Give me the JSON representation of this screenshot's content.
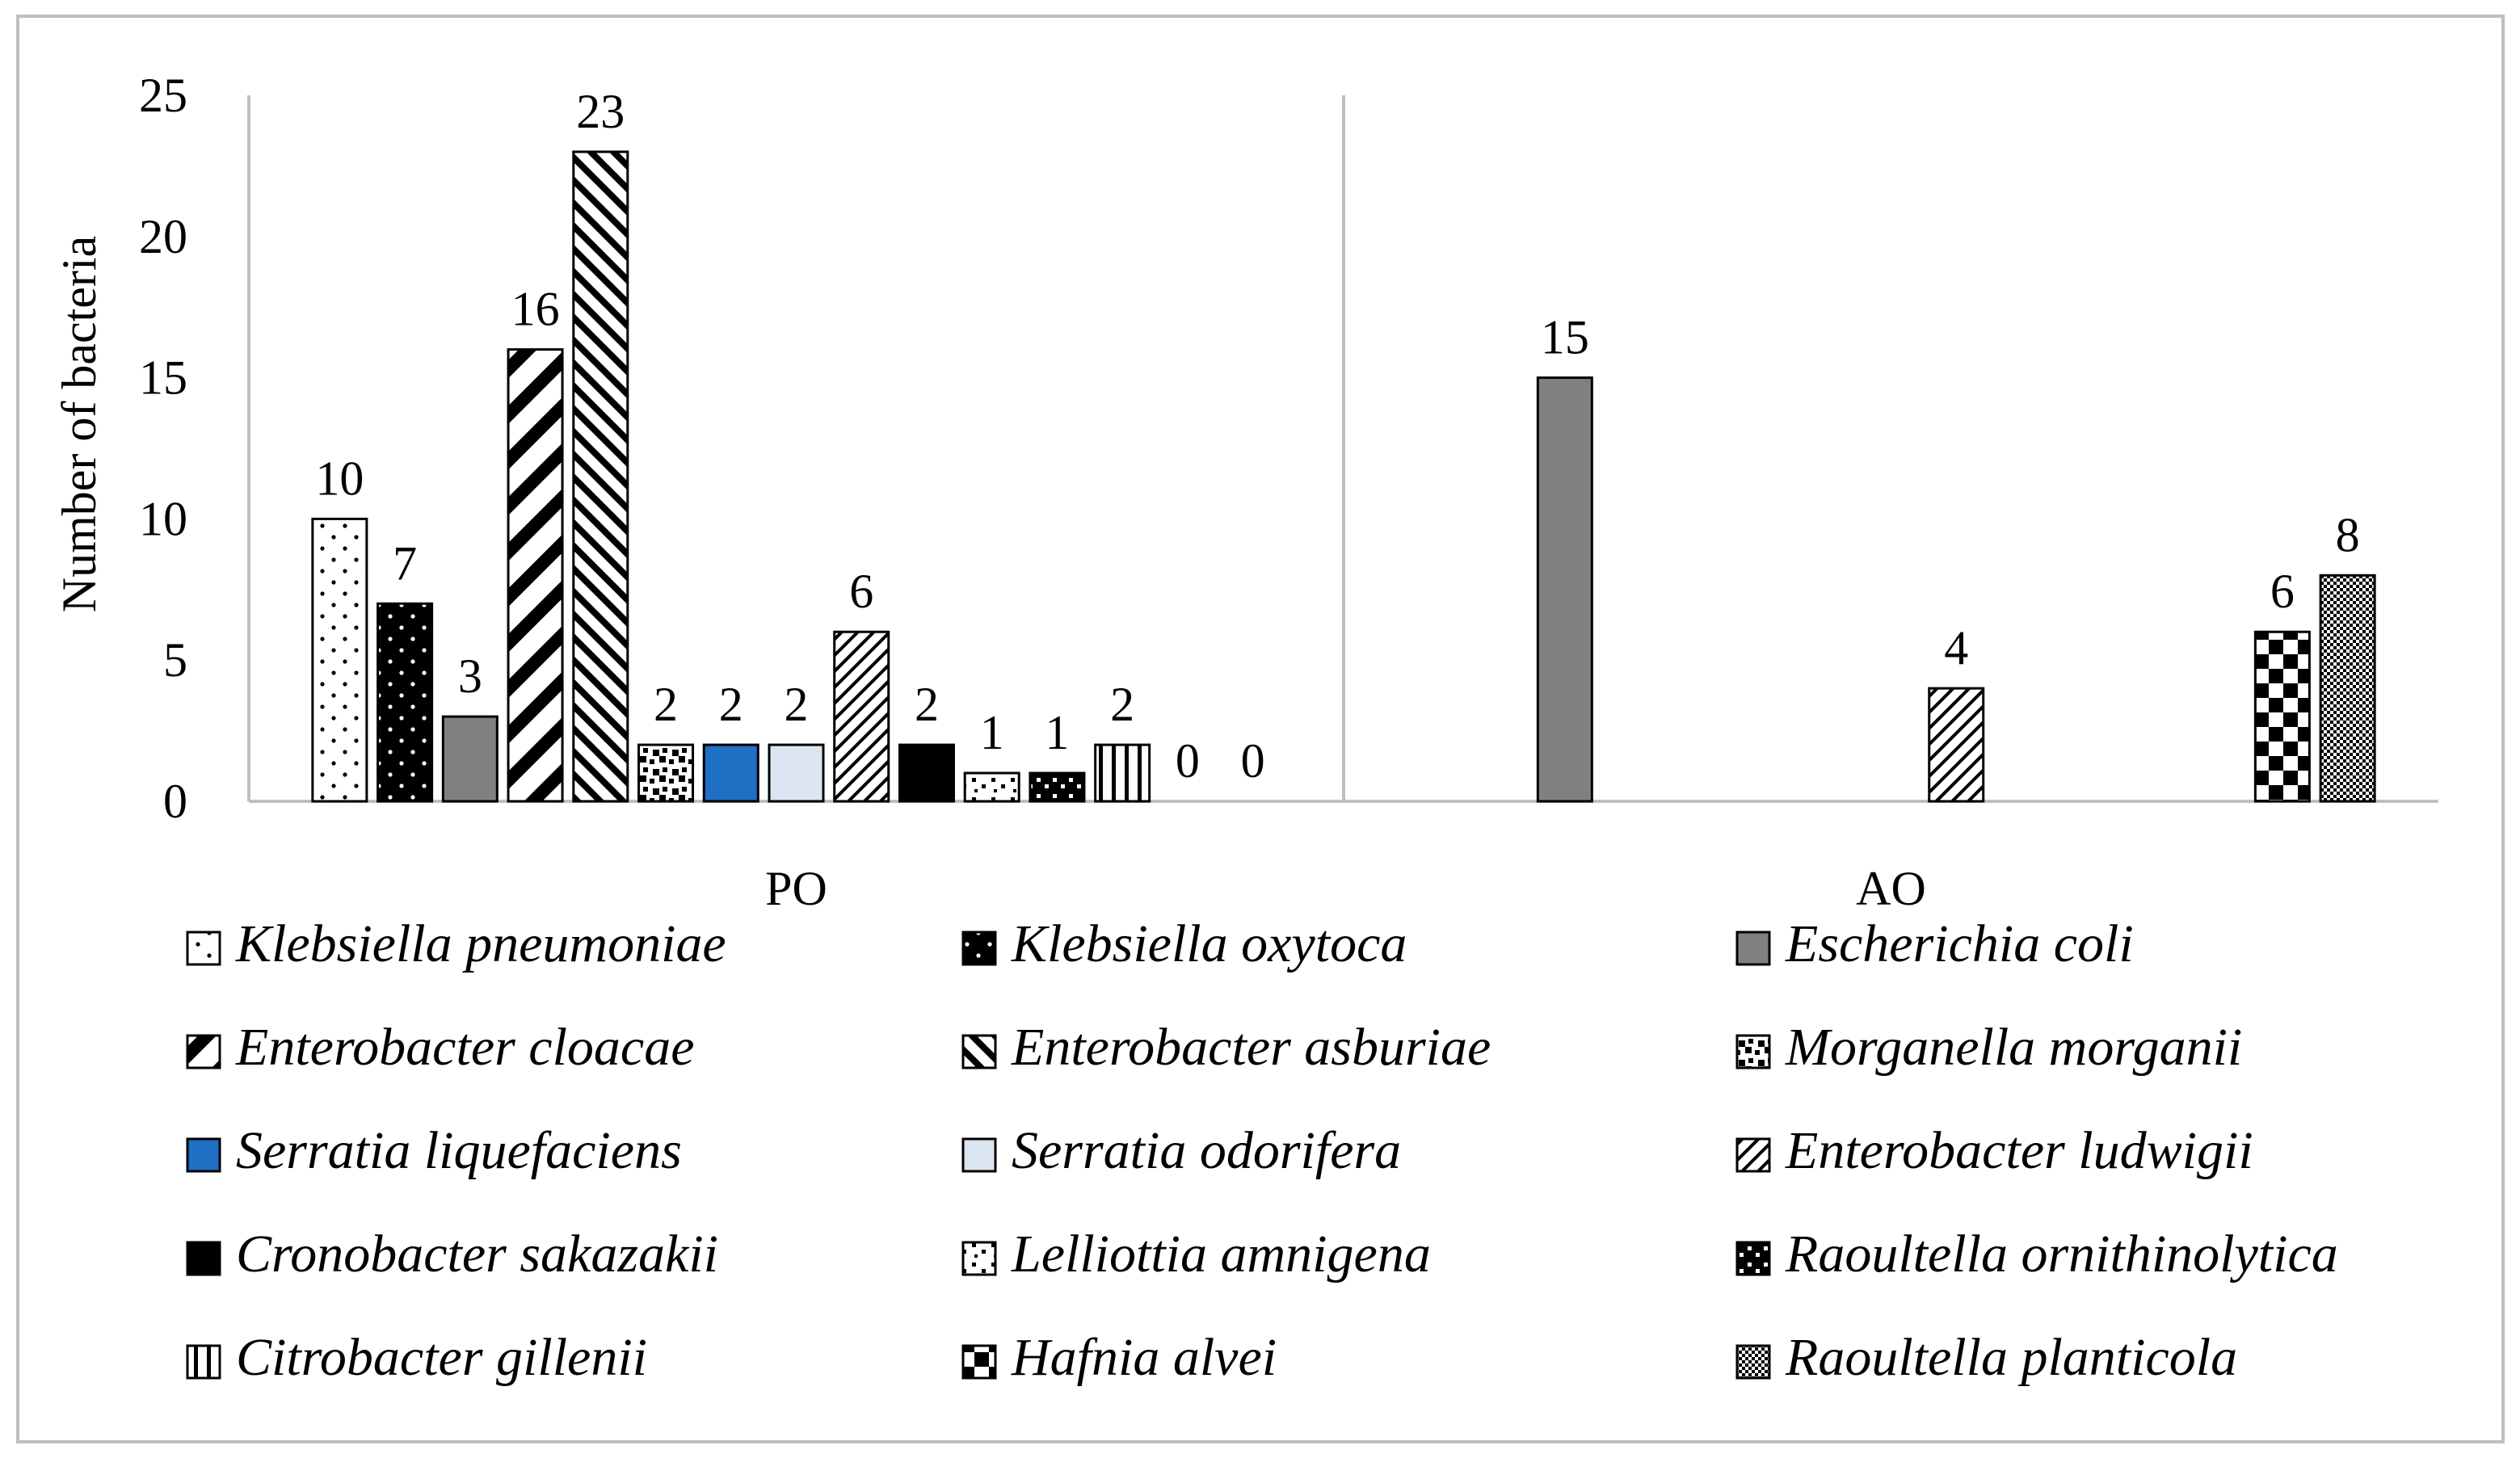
{
  "chart_data": {
    "type": "bar",
    "title": "",
    "xlabel": "",
    "ylabel": "Number of bacteria",
    "ylim": [
      0,
      25
    ],
    "yticks": [
      0,
      5,
      10,
      15,
      20,
      25
    ],
    "grid": false,
    "legend_position": "bottom",
    "categories": [
      "PO",
      "AO"
    ],
    "series": [
      {
        "name": "Klebsiella pneumoniae",
        "values": [
          10,
          null
        ],
        "pattern": "dots"
      },
      {
        "name": "Klebsiella oxytoca",
        "values": [
          7,
          null
        ],
        "pattern": "dots-on-black"
      },
      {
        "name": "Escherichia coli",
        "values": [
          3,
          15
        ],
        "pattern": "gray"
      },
      {
        "name": "Enterobacter cloacae",
        "values": [
          16,
          null
        ],
        "pattern": "diag-wide"
      },
      {
        "name": "Enterobacter asburiae",
        "values": [
          23,
          null
        ],
        "pattern": "diag-narrow"
      },
      {
        "name": "Morganella morganii",
        "values": [
          2,
          null
        ],
        "pattern": "confetti"
      },
      {
        "name": "Serratia liquefaciens",
        "values": [
          2,
          null
        ],
        "pattern": "blue"
      },
      {
        "name": "Serratia odorifera",
        "values": [
          2,
          null
        ],
        "pattern": "lightblue"
      },
      {
        "name": "Enterobacter ludwigii",
        "values": [
          6,
          4
        ],
        "pattern": "back-diag"
      },
      {
        "name": "Cronobacter sakazakii",
        "values": [
          2,
          null
        ],
        "pattern": "black"
      },
      {
        "name": "Lelliottia amnigena",
        "values": [
          1,
          null
        ],
        "pattern": "sparse-confetti"
      },
      {
        "name": "Raoultella ornithinolytica",
        "values": [
          1,
          null
        ],
        "pattern": "dense-confetti"
      },
      {
        "name": "Citrobacter gillenii",
        "values": [
          2,
          null
        ],
        "pattern": "vertical"
      },
      {
        "name": "Hafnia alvei",
        "values": [
          0,
          6
        ],
        "pattern": "checker"
      },
      {
        "name": "Raoultella planticola",
        "values": [
          0,
          8
        ],
        "pattern": "fine-checker"
      }
    ],
    "colors": {
      "gray": "#808080",
      "blue": "#1f6fc4",
      "lightblue": "#dce6f2",
      "black": "#000000",
      "axis": "#bfbfbf",
      "frame": "#bfbfbf"
    }
  }
}
